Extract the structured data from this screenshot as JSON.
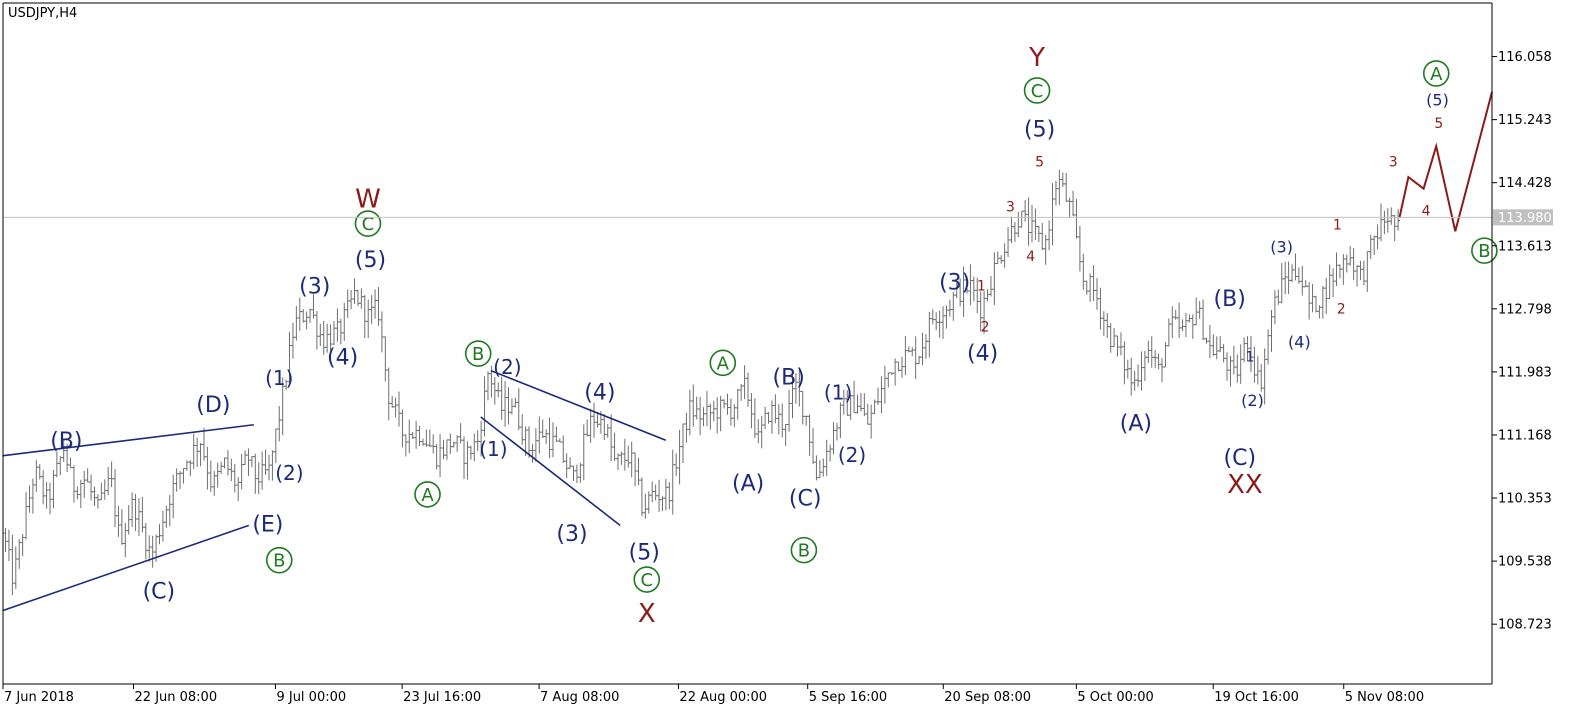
{
  "chart_data": {
    "type": "candlestick",
    "title": "USDJPY,H4",
    "current_price_label": "113.980",
    "current_price": 113.98,
    "ylim": [
      107.95,
      116.75
    ],
    "y_ticks": [
      "116.058",
      "115.243",
      "114.428",
      "113.613",
      "112.798",
      "111.983",
      "111.168",
      "110.353",
      "109.538",
      "108.723"
    ],
    "y_tick_values": [
      116.058,
      115.243,
      114.428,
      113.613,
      112.798,
      111.983,
      111.168,
      110.353,
      109.538,
      108.723
    ],
    "x_ticks": [
      "7 Jun 2018",
      "22 Jun 08:00",
      "9 Jul 00:00",
      "23 Jul 16:00",
      "7 Aug 08:00",
      "22 Aug 00:00",
      "5 Sep 16:00",
      "20 Sep 08:00",
      "5 Oct 00:00",
      "19 Oct 16:00",
      "5 Nov 08:00"
    ],
    "grid": false,
    "colors": {
      "candle": "#6e6e6e",
      "navy": "#1d2a7a",
      "green": "#1f7a1f",
      "darkred": "#8b1a1a",
      "price_line": "#c0c0c0"
    },
    "price_path": [
      [
        0,
        109.9
      ],
      [
        0.8,
        109.3
      ],
      [
        2.5,
        110.7
      ],
      [
        3.5,
        110.3
      ],
      [
        4.8,
        111.0
      ],
      [
        5.5,
        110.5
      ],
      [
        6.5,
        110.6
      ],
      [
        7.5,
        110.2
      ],
      [
        8.5,
        110.6
      ],
      [
        9.2,
        109.8
      ],
      [
        10.3,
        110.3
      ],
      [
        11.7,
        109.6
      ],
      [
        13.2,
        110.4
      ],
      [
        14.3,
        110.8
      ],
      [
        15.6,
        111.1
      ],
      [
        16.5,
        110.5
      ],
      [
        17.5,
        110.8
      ],
      [
        18.5,
        110.5
      ],
      [
        19.3,
        110.9
      ],
      [
        20.0,
        110.6
      ],
      [
        21.0,
        110.7
      ],
      [
        22.0,
        111.6
      ],
      [
        23.0,
        112.6
      ],
      [
        24.2,
        112.8
      ],
      [
        25.2,
        112.4
      ],
      [
        26.5,
        112.5
      ],
      [
        27.8,
        113.0
      ],
      [
        28.8,
        112.7
      ],
      [
        29.6,
        112.8
      ],
      [
        30.4,
        111.7
      ],
      [
        31.5,
        111.2
      ],
      [
        33.0,
        111.2
      ],
      [
        34.2,
        110.9
      ],
      [
        35.5,
        111.1
      ],
      [
        36.5,
        110.9
      ],
      [
        37.5,
        111.1
      ],
      [
        38.3,
        112.0
      ],
      [
        39.3,
        111.5
      ],
      [
        40.2,
        111.6
      ],
      [
        41.5,
        111.0
      ],
      [
        42.6,
        111.2
      ],
      [
        43.8,
        111.0
      ],
      [
        45.0,
        110.6
      ],
      [
        46.5,
        111.4
      ],
      [
        47.5,
        111.3
      ],
      [
        48.3,
        110.8
      ],
      [
        49.5,
        110.9
      ],
      [
        50.5,
        110.2
      ],
      [
        51.2,
        110.4
      ],
      [
        52.5,
        110.4
      ],
      [
        53.5,
        111.1
      ],
      [
        54.2,
        111.5
      ],
      [
        55.2,
        111.4
      ],
      [
        56.5,
        111.5
      ],
      [
        57.5,
        111.5
      ],
      [
        58.6,
        111.8
      ],
      [
        59.6,
        111.1
      ],
      [
        60.5,
        111.5
      ],
      [
        61.6,
        111.3
      ],
      [
        62.6,
        111.8
      ],
      [
        63.4,
        111.4
      ],
      [
        64.2,
        110.6
      ],
      [
        65.1,
        111.0
      ],
      [
        66.2,
        111.5
      ],
      [
        67.4,
        111.6
      ],
      [
        68.2,
        111.3
      ],
      [
        69.2,
        111.7
      ],
      [
        70.2,
        112.1
      ],
      [
        71.3,
        112.2
      ],
      [
        72.2,
        112.2
      ],
      [
        73.4,
        112.7
      ],
      [
        74.4,
        112.8
      ],
      [
        75.3,
        113.0
      ],
      [
        76.3,
        113.1
      ],
      [
        77.2,
        112.8
      ],
      [
        78.2,
        113.3
      ],
      [
        79.2,
        113.7
      ],
      [
        80.2,
        114.0
      ],
      [
        81.2,
        113.8
      ],
      [
        82.2,
        113.6
      ],
      [
        83.2,
        114.5
      ],
      [
        84.2,
        114.1
      ],
      [
        85.2,
        113.2
      ],
      [
        86.2,
        113.0
      ],
      [
        87.2,
        112.5
      ],
      [
        88.2,
        112.2
      ],
      [
        89.2,
        111.8
      ],
      [
        90.2,
        112.3
      ],
      [
        91.2,
        112.0
      ],
      [
        92.2,
        112.6
      ],
      [
        93.2,
        112.5
      ],
      [
        94.2,
        112.8
      ],
      [
        95.2,
        112.3
      ],
      [
        96.2,
        112.2
      ],
      [
        97.2,
        111.9
      ],
      [
        98.2,
        112.4
      ],
      [
        99.2,
        111.8
      ],
      [
        100.2,
        112.8
      ],
      [
        101.2,
        113.2
      ],
      [
        102.2,
        113.3
      ],
      [
        103.2,
        112.8
      ],
      [
        104.2,
        113.0
      ],
      [
        105.2,
        113.3
      ],
      [
        106.2,
        113.5
      ],
      [
        107.2,
        113.2
      ],
      [
        108.2,
        113.7
      ],
      [
        109.2,
        114.0
      ],
      [
        110.2,
        113.8
      ]
    ],
    "projection_path": [
      [
        110.2,
        113.98
      ],
      [
        110.9,
        114.5
      ],
      [
        112.1,
        114.35
      ],
      [
        113.1,
        114.9
      ],
      [
        114.6,
        113.8
      ],
      [
        117.5,
        115.6
      ]
    ],
    "x_ticks_pos": [
      0,
      10.3,
      21.5,
      31.5,
      42.3,
      53.3,
      63.5,
      74.2,
      84.7,
      95.5,
      105.8
    ],
    "x_range": [
      0,
      117.5
    ],
    "trendlines": [
      {
        "from": [
          0,
          110.9
        ],
        "to": [
          19.8,
          111.3
        ]
      },
      {
        "from": [
          0,
          108.9
        ],
        "to": [
          19.4,
          110.0
        ]
      },
      {
        "from": [
          38.5,
          112.0
        ],
        "to": [
          52.3,
          111.1
        ]
      },
      {
        "from": [
          37.7,
          111.4
        ],
        "to": [
          48.7,
          110.0
        ]
      }
    ],
    "annotations": [
      {
        "text": "(B)",
        "color": "navy",
        "size": 22,
        "x": 5.0,
        "y": 111.1
      },
      {
        "text": "(D)",
        "color": "navy",
        "size": 22,
        "x": 16.6,
        "y": 111.57
      },
      {
        "text": "(C)",
        "color": "navy",
        "size": 22,
        "x": 12.3,
        "y": 109.16
      },
      {
        "text": "(E)",
        "color": "navy",
        "size": 22,
        "x": 20.9,
        "y": 110.02
      },
      {
        "text": "B",
        "color": "green",
        "circled": true,
        "x": 21.8,
        "y": 109.55
      },
      {
        "text": "(1)",
        "color": "navy",
        "size": 20,
        "x": 21.8,
        "y": 111.91
      },
      {
        "text": "(2)",
        "color": "navy",
        "size": 20,
        "x": 22.6,
        "y": 110.68
      },
      {
        "text": "(3)",
        "color": "navy",
        "size": 22,
        "x": 24.6,
        "y": 113.1
      },
      {
        "text": "(4)",
        "color": "navy",
        "size": 22,
        "x": 26.8,
        "y": 112.18
      },
      {
        "text": "(5)",
        "color": "navy",
        "size": 22,
        "x": 29.0,
        "y": 113.44
      },
      {
        "text": "C",
        "color": "green",
        "circled": true,
        "x": 28.8,
        "y": 113.9
      },
      {
        "text": "W",
        "color": "darkred",
        "size": 26,
        "x": 28.8,
        "y": 114.23
      },
      {
        "text": "A",
        "color": "green",
        "circled": true,
        "x": 33.5,
        "y": 110.4
      },
      {
        "text": "B",
        "color": "green",
        "circled": true,
        "x": 37.5,
        "y": 112.22
      },
      {
        "text": "(2)",
        "color": "navy",
        "size": 20,
        "x": 39.8,
        "y": 112.05
      },
      {
        "text": "(1)",
        "color": "navy",
        "size": 20,
        "x": 38.7,
        "y": 110.99
      },
      {
        "text": "(4)",
        "color": "navy",
        "size": 22,
        "x": 47.1,
        "y": 111.73
      },
      {
        "text": "(3)",
        "color": "navy",
        "size": 22,
        "x": 44.9,
        "y": 109.9
      },
      {
        "text": "(5)",
        "color": "navy",
        "size": 22,
        "x": 50.6,
        "y": 109.66
      },
      {
        "text": "C",
        "color": "green",
        "circled": true,
        "x": 50.8,
        "y": 109.3
      },
      {
        "text": "X",
        "color": "darkred",
        "size": 26,
        "x": 50.8,
        "y": 108.87
      },
      {
        "text": "A",
        "color": "green",
        "circled": true,
        "x": 56.8,
        "y": 112.1
      },
      {
        "text": "(A)",
        "color": "navy",
        "size": 22,
        "x": 58.8,
        "y": 110.55
      },
      {
        "text": "(B)",
        "color": "navy",
        "size": 22,
        "x": 62.0,
        "y": 111.92
      },
      {
        "text": "(C)",
        "color": "navy",
        "size": 22,
        "x": 63.3,
        "y": 110.36
      },
      {
        "text": "B",
        "color": "green",
        "circled": true,
        "x": 63.2,
        "y": 109.68
      },
      {
        "text": "(1)",
        "color": "navy",
        "size": 20,
        "x": 65.9,
        "y": 111.72
      },
      {
        "text": "(2)",
        "color": "navy",
        "size": 20,
        "x": 67.0,
        "y": 110.91
      },
      {
        "text": "(3)",
        "color": "navy",
        "size": 22,
        "x": 75.1,
        "y": 113.15
      },
      {
        "text": "(4)",
        "color": "navy",
        "size": 22,
        "x": 77.3,
        "y": 112.23
      },
      {
        "text": "1",
        "color": "darkred",
        "size": 14,
        "x": 77.2,
        "y": 113.1
      },
      {
        "text": "2",
        "color": "darkred",
        "size": 14,
        "x": 77.5,
        "y": 112.57
      },
      {
        "text": "3",
        "color": "darkred",
        "size": 14,
        "x": 79.5,
        "y": 114.12
      },
      {
        "text": "4",
        "color": "darkred",
        "size": 14,
        "x": 81.1,
        "y": 113.48
      },
      {
        "text": "5",
        "color": "darkred",
        "size": 14,
        "x": 81.8,
        "y": 114.7
      },
      {
        "text": "(5)",
        "color": "navy",
        "size": 22,
        "x": 81.8,
        "y": 115.13
      },
      {
        "text": "C",
        "color": "green",
        "circled": true,
        "x": 81.6,
        "y": 115.62
      },
      {
        "text": "Y",
        "color": "darkred",
        "size": 26,
        "x": 81.6,
        "y": 116.06
      },
      {
        "text": "(A)",
        "color": "navy",
        "size": 22,
        "x": 89.4,
        "y": 111.33
      },
      {
        "text": "(B)",
        "color": "navy",
        "size": 22,
        "x": 96.8,
        "y": 112.94
      },
      {
        "text": "(C)",
        "color": "navy",
        "size": 22,
        "x": 97.6,
        "y": 110.88
      },
      {
        "text": "XX",
        "color": "darkred",
        "size": 26,
        "x": 98.0,
        "y": 110.54
      },
      {
        "text": "1",
        "color": "navy",
        "size": 14,
        "x": 98.4,
        "y": 112.18
      },
      {
        "text": "(2)",
        "color": "navy",
        "size": 16,
        "x": 98.6,
        "y": 111.62
      },
      {
        "text": "(3)",
        "color": "navy",
        "size": 16,
        "x": 100.9,
        "y": 113.6
      },
      {
        "text": "(4)",
        "color": "navy",
        "size": 16,
        "x": 102.3,
        "y": 112.37
      },
      {
        "text": "1",
        "color": "darkred",
        "size": 14,
        "x": 105.3,
        "y": 113.89
      },
      {
        "text": "2",
        "color": "darkred",
        "size": 14,
        "x": 105.6,
        "y": 112.8
      },
      {
        "text": "3",
        "color": "darkred",
        "size": 14,
        "x": 109.7,
        "y": 114.7
      },
      {
        "text": "4",
        "color": "darkred",
        "size": 14,
        "x": 112.3,
        "y": 114.07
      },
      {
        "text": "5",
        "color": "darkred",
        "size": 14,
        "x": 113.3,
        "y": 115.2
      },
      {
        "text": "(5)",
        "color": "navy",
        "size": 16,
        "x": 113.2,
        "y": 115.5
      },
      {
        "text": "A",
        "color": "green",
        "circled": true,
        "x": 113.1,
        "y": 115.84
      },
      {
        "text": "B",
        "color": "green",
        "circled": true,
        "x": 116.9,
        "y": 113.55
      }
    ]
  }
}
